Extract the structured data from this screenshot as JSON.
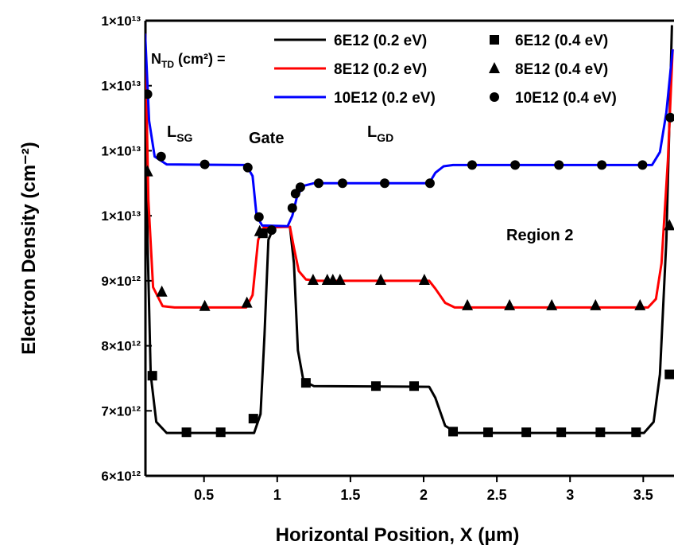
{
  "chart_data": {
    "type": "line",
    "x_label": "Horizontal Position, X (μm)",
    "y_label": "Electron Density (cm⁻²)",
    "xlim": [
      0.1,
      3.71
    ],
    "ylim": [
      6000000000000.0,
      13000000000000.0
    ],
    "xticks": [
      0.5,
      1.0,
      1.5,
      2.0,
      2.5,
      3.0,
      3.5
    ],
    "yticks": [
      {
        "value": 6000000000000.0,
        "label": "6×10¹²"
      },
      {
        "value": 7000000000000.0,
        "label": "7×10¹²"
      },
      {
        "value": 8000000000000.0,
        "label": "8×10¹²"
      },
      {
        "value": 9000000000000.0,
        "label": "9×10¹²"
      },
      {
        "value": 10000000000000.0,
        "label": "1×10¹³"
      },
      {
        "value": 11000000000000.0,
        "label": "1×10¹³"
      },
      {
        "value": 12000000000000.0,
        "label": "1×10¹³"
      },
      {
        "value": 13000000000000.0,
        "label": "1×10¹³"
      }
    ],
    "legend_title": {
      "text": "N",
      "subscript": "TD",
      "suffix": " (cm²) ="
    },
    "annotations": [
      {
        "text": "L",
        "subscript": "SG"
      },
      {
        "text": "Gate"
      },
      {
        "text": "L",
        "subscript": "GD"
      },
      {
        "text": "Region 2"
      }
    ],
    "series": [
      {
        "name": "6E12 (0.2 eV)",
        "color": "#000000",
        "x": [
          0.098,
          0.114,
          0.136,
          0.174,
          0.245,
          0.842,
          0.886,
          0.913,
          0.94,
          0.978,
          1.087,
          1.114,
          1.141,
          1.179,
          1.25,
          2.038,
          2.08,
          2.147,
          2.228,
          3.505,
          3.571,
          3.614,
          3.658,
          3.696
        ],
        "values": [
          12800000000000.0,
          9630000000000.0,
          7560000000000.0,
          6830000000000.0,
          6660000000000.0,
          6660000000000.0,
          6950000000000.0,
          8170000000000.0,
          9630000000000.0,
          9830000000000.0,
          9830000000000.0,
          9270000000000.0,
          7930000000000.0,
          7460000000000.0,
          7380000000000.0,
          7370000000000.0,
          7200000000000.0,
          6770000000000.0,
          6660000000000.0,
          6660000000000.0,
          6830000000000.0,
          7560000000000.0,
          9630000000000.0,
          12930000000000.0
        ]
      },
      {
        "name": "8E12 (0.2 eV)",
        "color": "#ff0000",
        "x": [
          0.098,
          0.12,
          0.152,
          0.217,
          0.299,
          0.788,
          0.832,
          0.87,
          0.908,
          1.087,
          1.114,
          1.147,
          1.196,
          1.277,
          2.038,
          2.08,
          2.147,
          2.212,
          3.533,
          3.587,
          3.625,
          3.668,
          3.701
        ],
        "values": [
          12800000000000.0,
          10240000000000.0,
          8900000000000.0,
          8610000000000.0,
          8590000000000.0,
          8590000000000.0,
          8780000000000.0,
          9630000000000.0,
          9820000000000.0,
          9830000000000.0,
          9510000000000.0,
          9150000000000.0,
          9020000000000.0,
          9000000000000.0,
          9000000000000.0,
          8880000000000.0,
          8660000000000.0,
          8590000000000.0,
          8590000000000.0,
          8720000000000.0,
          9270000000000.0,
          10850000000000.0,
          12560000000000.0
        ]
      },
      {
        "name": "10E12 (0.2 eV)",
        "color": "#0000ff",
        "x": [
          0.098,
          0.125,
          0.163,
          0.245,
          0.788,
          0.832,
          0.859,
          0.897,
          1.071,
          1.103,
          1.136,
          1.179,
          1.25,
          2.038,
          2.08,
          2.136,
          2.201,
          3.56,
          3.614,
          3.658,
          3.701
        ],
        "values": [
          12800000000000.0,
          11460000000000.0,
          10910000000000.0,
          10790000000000.0,
          10780000000000.0,
          10610000000000.0,
          10000000000000.0,
          9850000000000.0,
          9840000000000.0,
          10000000000000.0,
          10300000000000.0,
          10460000000000.0,
          10500000000000.0,
          10500000000000.0,
          10660000000000.0,
          10760000000000.0,
          10780000000000.0,
          10780000000000.0,
          10980000000000.0,
          11590000000000.0,
          12560000000000.0
        ]
      },
      {
        "name": "6E12 (0.4 eV)",
        "color": "#000000",
        "marker": "square",
        "x": [
          0.147,
          0.38,
          0.614,
          0.837,
          0.902,
          1.196,
          1.674,
          1.935,
          2.201,
          2.44,
          2.701,
          2.94,
          3.207,
          3.451,
          3.679
        ],
        "values": [
          7540000000000.0,
          6670000000000.0,
          6670000000000.0,
          6880000000000.0,
          9730000000000.0,
          7430000000000.0,
          7380000000000.0,
          7380000000000.0,
          6680000000000.0,
          6670000000000.0,
          6670000000000.0,
          6670000000000.0,
          6670000000000.0,
          6670000000000.0,
          7560000000000.0
        ]
      },
      {
        "name": "8E12 (0.4 eV)",
        "color": "#000000",
        "marker": "triangle",
        "x": [
          0.114,
          0.212,
          0.505,
          0.793,
          0.88,
          1.245,
          1.342,
          1.38,
          1.429,
          1.707,
          2.005,
          2.299,
          2.587,
          2.875,
          3.174,
          3.478,
          3.679
        ],
        "values": [
          10680000000000.0,
          8830000000000.0,
          8610000000000.0,
          8660000000000.0,
          9760000000000.0,
          9010000000000.0,
          9010000000000.0,
          9010000000000.0,
          9010000000000.0,
          9010000000000.0,
          9010000000000.0,
          8620000000000.0,
          8620000000000.0,
          8620000000000.0,
          8620000000000.0,
          8620000000000.0,
          9850000000000.0
        ]
      },
      {
        "name": "10E12 (0.4 eV)",
        "color": "#000000",
        "marker": "circle",
        "x": [
          0.114,
          0.207,
          0.505,
          0.799,
          0.875,
          0.962,
          1.103,
          1.125,
          1.158,
          1.283,
          1.446,
          1.734,
          2.043,
          2.331,
          2.625,
          2.924,
          3.217,
          3.495,
          3.685
        ],
        "values": [
          11870000000000.0,
          10910000000000.0,
          10790000000000.0,
          10740000000000.0,
          9980000000000.0,
          9780000000000.0,
          10120000000000.0,
          10340000000000.0,
          10440000000000.0,
          10500000000000.0,
          10500000000000.0,
          10500000000000.0,
          10500000000000.0,
          10780000000000.0,
          10780000000000.0,
          10780000000000.0,
          10780000000000.0,
          10780000000000.0,
          11510000000000.0
        ]
      }
    ]
  }
}
